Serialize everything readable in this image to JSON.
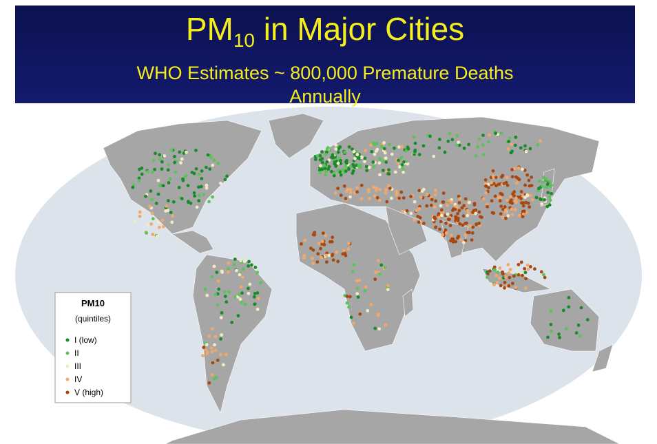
{
  "header": {
    "title": {
      "main": "PM",
      "subscript": "10",
      "rest": "in Major Cities"
    },
    "subtitle": "WHO Estimates ~ 800,000 Premature Deaths Annually"
  },
  "legend": {
    "title": "PM10",
    "subtitle": "(quintiles)",
    "items": [
      {
        "label": "I (low)",
        "color": "#1a8a2a"
      },
      {
        "label": "II",
        "color": "#5cc25a"
      },
      {
        "label": "III",
        "color": "#f3e9c6"
      },
      {
        "label": "IV",
        "color": "#f2a86a"
      },
      {
        "label": "V (high)",
        "color": "#a8470e"
      }
    ]
  }
}
